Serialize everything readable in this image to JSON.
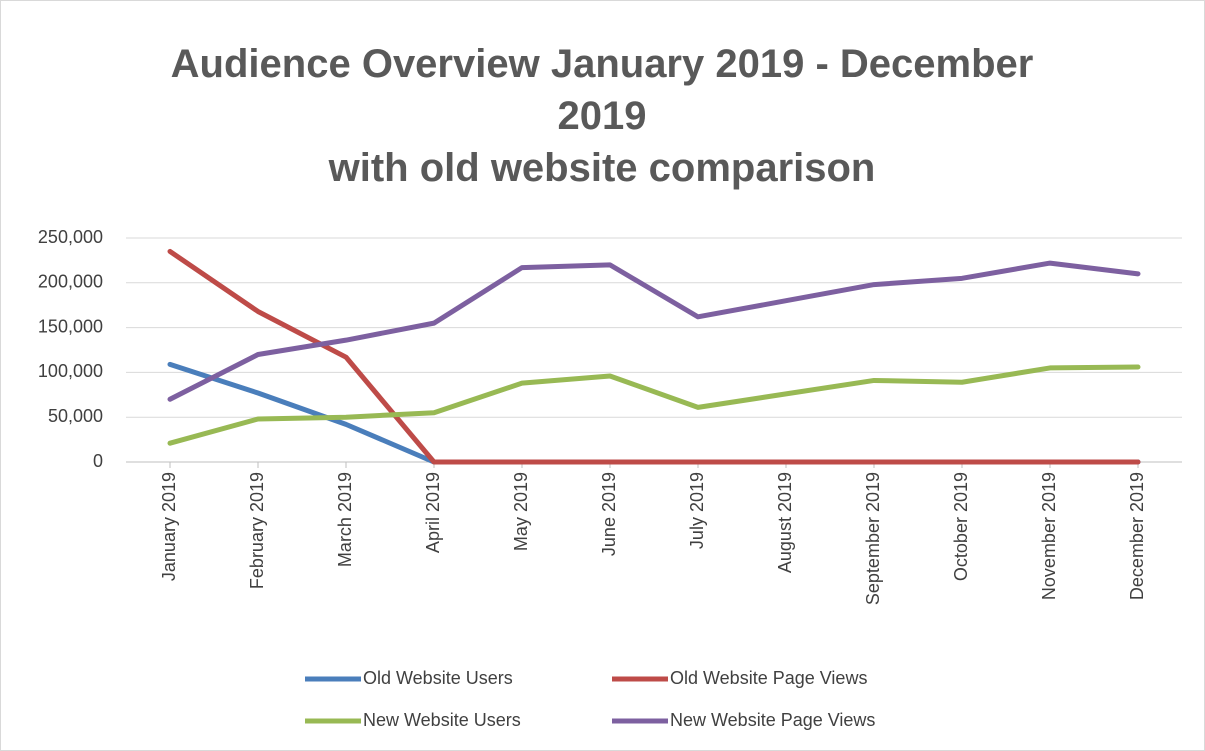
{
  "chart_data": {
    "type": "line",
    "title": "Audience Overview January 2019 - December 2019",
    "subtitle": "with old website comparison",
    "categories": [
      "January 2019",
      "February 2019",
      "March 2019",
      "April 2019",
      "May 2019",
      "June 2019",
      "July 2019",
      "August 2019",
      "September 2019",
      "October 2019",
      "November 2019",
      "December 2019"
    ],
    "series": [
      {
        "name": "Old Website Users",
        "color": "#4a7ebb",
        "values": [
          109000,
          77000,
          42000,
          0,
          0,
          0,
          0,
          0,
          0,
          0,
          0,
          0
        ]
      },
      {
        "name": "Old Website Page Views",
        "color": "#be4b48",
        "values": [
          235000,
          168000,
          117000,
          0,
          0,
          0,
          0,
          0,
          0,
          0,
          0,
          0
        ]
      },
      {
        "name": "New Website Users",
        "color": "#98b954",
        "values": [
          21000,
          48000,
          50000,
          55000,
          88000,
          96000,
          61000,
          76000,
          91000,
          89000,
          105000,
          106000
        ]
      },
      {
        "name": "New Website Page Views",
        "color": "#7d60a0",
        "values": [
          70000,
          120000,
          136000,
          155000,
          217000,
          220000,
          162000,
          180000,
          198000,
          205000,
          222000,
          210000
        ]
      }
    ],
    "ylim": [
      0,
      250000
    ],
    "yticks": [
      0,
      {
        "value": 50000,
        "label": "50,000"
      },
      {
        "value": 100000,
        "label": "100,000"
      },
      {
        "value": 150000,
        "label": "150,000"
      },
      {
        "value": 200000,
        "label": "200,000"
      },
      {
        "value": 250000,
        "label": "250,000"
      }
    ],
    "grid": true,
    "legend": "bottom"
  }
}
